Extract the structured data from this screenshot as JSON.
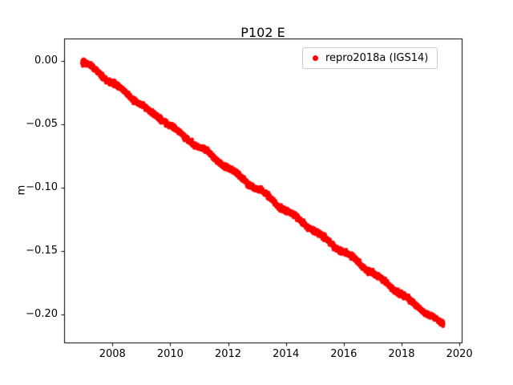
{
  "title": "P102 E",
  "ylabel": "m",
  "legend": {
    "label": "repro2018a (IGS14)",
    "marker_color": "#ff0000"
  },
  "axes": {
    "background": "#ffffff",
    "frame_color": "#000000",
    "xtick_values": [
      2008,
      2010,
      2012,
      2014,
      2016,
      2018,
      2020
    ],
    "xtick_labels": [
      "2008",
      "2010",
      "2012",
      "2014",
      "2016",
      "2018",
      "2020"
    ],
    "ytick_values": [
      0.0,
      -0.05,
      -0.1,
      -0.15,
      -0.2
    ],
    "ytick_labels": [
      "0.00",
      "−0.05",
      "−0.10",
      "−0.15",
      "−0.20"
    ]
  },
  "chart_data": {
    "type": "scatter",
    "title": "P102 E",
    "xlabel": "",
    "ylabel": "m",
    "xlim": [
      2006.33,
      2020.08
    ],
    "ylim": [
      -0.222,
      0.018
    ],
    "xticks": [
      2008,
      2010,
      2012,
      2014,
      2016,
      2018,
      2020
    ],
    "yticks": [
      0.0,
      -0.05,
      -0.1,
      -0.15,
      -0.2
    ],
    "grid": false,
    "legend_position": "upper right",
    "series": [
      {
        "name": "repro2018a (IGS14)",
        "color": "#ff0000",
        "marker": "dot",
        "x_start": 2006.95,
        "x_end": 2019.45,
        "n_points": 4400,
        "trend_m_per_yr": -0.01665,
        "noise_std_m": 0.001,
        "annual_amp_m": 0.0008,
        "anchor_x": [
          2006.95,
          2007.3,
          2007.8,
          2008.3,
          2008.8,
          2009.3,
          2009.8,
          2010.3,
          2010.8,
          2011.3,
          2011.8,
          2012.3,
          2012.8,
          2013.3,
          2013.8,
          2014.3,
          2014.8,
          2015.3,
          2015.8,
          2016.3,
          2016.8,
          2017.3,
          2017.8,
          2018.3,
          2018.8,
          2019.2,
          2019.45
        ],
        "anchor_y": [
          0.0,
          -0.005,
          -0.014,
          -0.022,
          -0.031,
          -0.04,
          -0.047,
          -0.056,
          -0.065,
          -0.072,
          -0.081,
          -0.089,
          -0.098,
          -0.105,
          -0.115,
          -0.122,
          -0.131,
          -0.139,
          -0.148,
          -0.155,
          -0.164,
          -0.172,
          -0.181,
          -0.189,
          -0.198,
          -0.204,
          -0.208
        ]
      }
    ]
  }
}
